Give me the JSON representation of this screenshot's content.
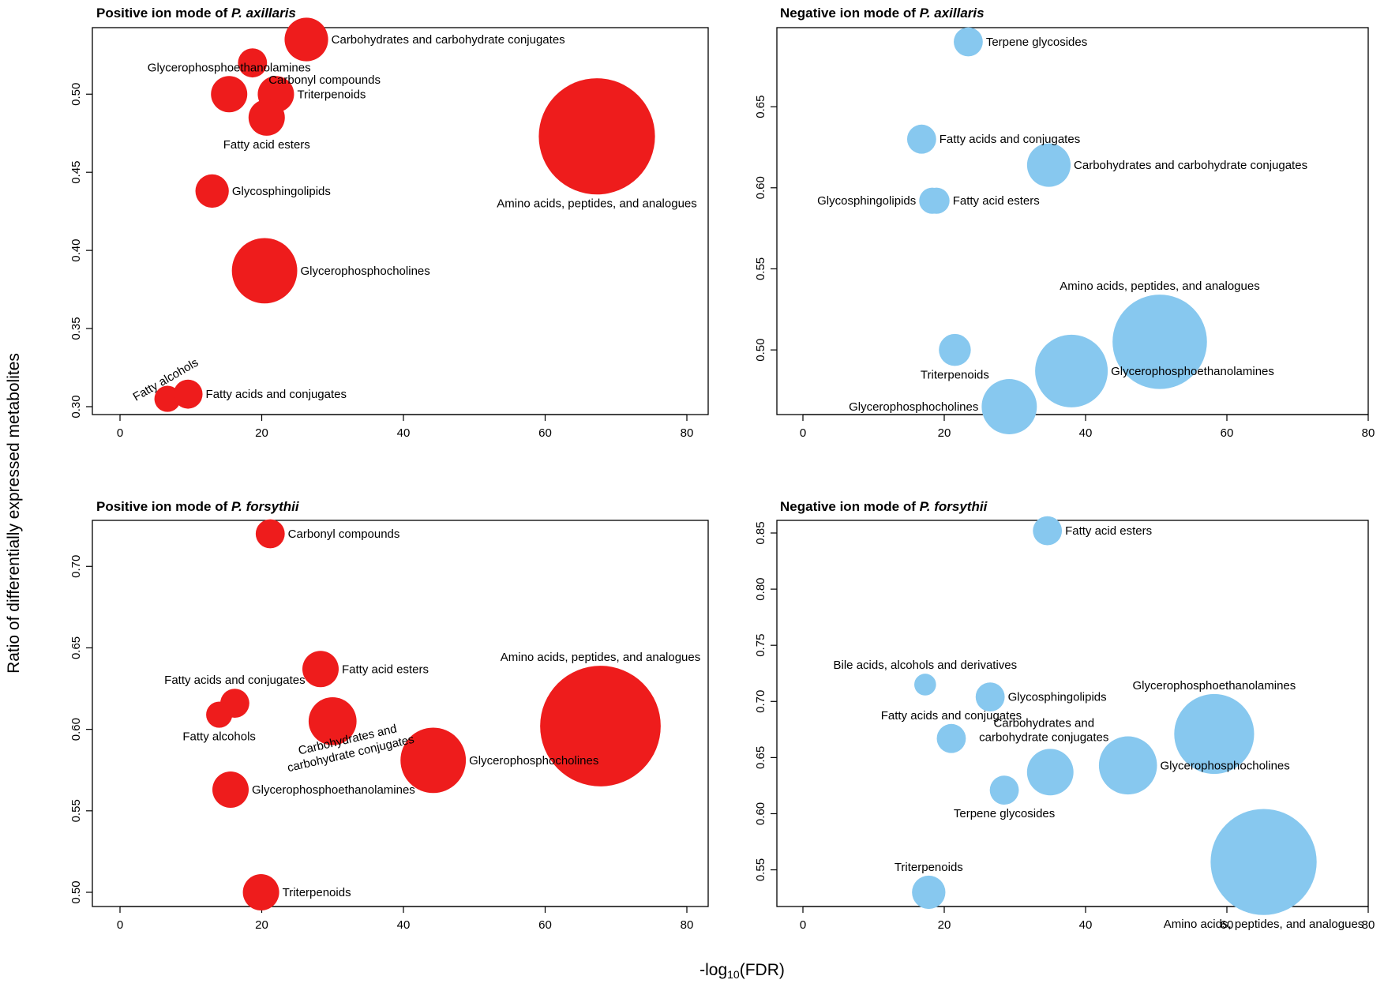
{
  "figure": {
    "xlabel_prefix": "-log",
    "xlabel_sub": "10",
    "xlabel_suffix": "(FDR)",
    "ylabel": "Ratio of differentially expressed metabolites",
    "colors": {
      "positive": "#ee1c1c",
      "negative": "#87c8ef"
    }
  },
  "chart_data": [
    {
      "type": "scatter",
      "title_prefix": "Positive ion mode of ",
      "title_species": "P. axillaris",
      "mode": "positive",
      "xlim": [
        0,
        80
      ],
      "ylim": [
        0.3,
        0.535
      ],
      "xticks": [
        "0",
        "20",
        "40",
        "60",
        "80"
      ],
      "yticks": [
        "0.30",
        "0.35",
        "0.40",
        "0.45",
        "0.50"
      ],
      "points": [
        {
          "label": "Carbohydrates and carbohydrate conjugates",
          "x": 26.3,
          "y": 0.535,
          "size": 3,
          "pos": "right"
        },
        {
          "label": "Carbonyl compounds",
          "x": 18.7,
          "y": 0.52,
          "size": 2,
          "pos": "below-right"
        },
        {
          "label": "Glycerophosphoethanolamines",
          "x": 15.4,
          "y": 0.5,
          "size": 2.5,
          "pos": "above"
        },
        {
          "label": "Triterpenoids",
          "x": 22.0,
          "y": 0.5,
          "size": 2.5,
          "pos": "right"
        },
        {
          "label": "Fatty acid esters",
          "x": 20.7,
          "y": 0.485,
          "size": 2.5,
          "pos": "below"
        },
        {
          "label": "Amino acids, peptides, and analogues",
          "x": 67.3,
          "y": 0.473,
          "size": 8,
          "pos": "below"
        },
        {
          "label": "Glycosphingolipids",
          "x": 13.0,
          "y": 0.438,
          "size": 2.3,
          "pos": "right"
        },
        {
          "label": "Glycerophosphocholines",
          "x": 20.4,
          "y": 0.387,
          "size": 4.5,
          "pos": "right"
        },
        {
          "label": "Fatty alcohols",
          "x": 6.7,
          "y": 0.305,
          "size": 1.8,
          "pos": "rotated"
        },
        {
          "label": "Fatty acids and conjugates",
          "x": 9.6,
          "y": 0.308,
          "size": 2,
          "pos": "right"
        }
      ]
    },
    {
      "type": "scatter",
      "title_prefix": "Negative ion mode of ",
      "title_species": "P. axillaris",
      "mode": "negative",
      "xlim": [
        0,
        80
      ],
      "ylim": [
        0.465,
        0.69
      ],
      "xticks": [
        "0",
        "20",
        "40",
        "60",
        "80"
      ],
      "yticks": [
        "0.50",
        "0.55",
        "0.60",
        "0.65"
      ],
      "points": [
        {
          "label": "Terpene glycosides",
          "x": 23.4,
          "y": 0.69,
          "size": 2,
          "pos": "right"
        },
        {
          "label": "Fatty acids and conjugates",
          "x": 16.8,
          "y": 0.63,
          "size": 2,
          "pos": "right"
        },
        {
          "label": "Carbohydrates and carbohydrate conjugates",
          "x": 34.8,
          "y": 0.614,
          "size": 3,
          "pos": "right"
        },
        {
          "label": "Glycosphingolipids",
          "x": 18.3,
          "y": 0.592,
          "size": 1.8,
          "pos": "left"
        },
        {
          "label": "Fatty acid esters",
          "x": 18.9,
          "y": 0.592,
          "size": 1.8,
          "pos": "right"
        },
        {
          "label": "Amino acids, peptides, and analogues",
          "x": 50.5,
          "y": 0.505,
          "size": 6.5,
          "pos": "above"
        },
        {
          "label": "Triterpenoids",
          "x": 21.5,
          "y": 0.5,
          "size": 2.2,
          "pos": "below"
        },
        {
          "label": "Glycerophosphoethanolamines",
          "x": 38.0,
          "y": 0.487,
          "size": 5,
          "pos": "right"
        },
        {
          "label": "Glycerophosphocholines",
          "x": 29.2,
          "y": 0.465,
          "size": 3.8,
          "pos": "left"
        }
      ]
    },
    {
      "type": "scatter",
      "title_prefix": "Positive ion mode of ",
      "title_species": "P. forsythii",
      "mode": "positive",
      "xlim": [
        0,
        80
      ],
      "ylim": [
        0.5,
        0.72
      ],
      "xticks": [
        "0",
        "20",
        "40",
        "60",
        "80"
      ],
      "yticks": [
        "0.50",
        "0.55",
        "0.60",
        "0.65",
        "0.70"
      ],
      "points": [
        {
          "label": "Carbonyl compounds",
          "x": 21.2,
          "y": 0.72,
          "size": 2,
          "pos": "right"
        },
        {
          "label": "Fatty acid esters",
          "x": 28.3,
          "y": 0.637,
          "size": 2.5,
          "pos": "right"
        },
        {
          "label": "Fatty acids and conjugates",
          "x": 16.2,
          "y": 0.616,
          "size": 2,
          "pos": "above"
        },
        {
          "label": "Fatty alcohols",
          "x": 14.0,
          "y": 0.609,
          "size": 1.8,
          "pos": "below"
        },
        {
          "label": "Amino acids, peptides, and analogues",
          "x": 67.8,
          "y": 0.602,
          "size": 8.3,
          "pos": "above"
        },
        {
          "label": "Carbohydrates and carbohydrate conjugates",
          "x": 30.0,
          "y": 0.605,
          "size": 3.3,
          "pos": "rotated2"
        },
        {
          "label": "Glycerophosphocholines",
          "x": 44.2,
          "y": 0.581,
          "size": 4.5,
          "pos": "right"
        },
        {
          "label": "Glycerophosphoethanolamines",
          "x": 15.6,
          "y": 0.563,
          "size": 2.5,
          "pos": "right"
        },
        {
          "label": "Triterpenoids",
          "x": 19.9,
          "y": 0.5,
          "size": 2.5,
          "pos": "right"
        }
      ]
    },
    {
      "type": "scatter",
      "title_prefix": "Negative ion mode of ",
      "title_species": "P. forsythii",
      "mode": "negative",
      "xlim": [
        0,
        80
      ],
      "ylim": [
        0.53,
        0.85
      ],
      "xticks": [
        "0",
        "20",
        "40",
        "60",
        "80"
      ],
      "yticks": [
        "0.55",
        "0.60",
        "0.65",
        "0.70",
        "0.75",
        "0.80",
        "0.85"
      ],
      "points": [
        {
          "label": "Fatty acid esters",
          "x": 34.6,
          "y": 0.852,
          "size": 2,
          "pos": "right"
        },
        {
          "label": "Bile acids, alcohols and derivatives",
          "x": 17.3,
          "y": 0.715,
          "size": 1.5,
          "pos": "above"
        },
        {
          "label": "Glycosphingolipids",
          "x": 26.5,
          "y": 0.704,
          "size": 2,
          "pos": "right"
        },
        {
          "label": "Glycerophosphoethanolamines",
          "x": 58.2,
          "y": 0.671,
          "size": 5.5,
          "pos": "above"
        },
        {
          "label": "Fatty acids and conjugates",
          "x": 21.0,
          "y": 0.667,
          "size": 2,
          "pos": "above"
        },
        {
          "label": "Carbohydrates and carbohydrate conjugates",
          "x": 35.0,
          "y": 0.637,
          "size": 3.2,
          "pos": "above2"
        },
        {
          "label": "Glycerophosphocholines",
          "x": 46.0,
          "y": 0.643,
          "size": 4,
          "pos": "right"
        },
        {
          "label": "Terpene glycosides",
          "x": 28.5,
          "y": 0.621,
          "size": 2,
          "pos": "below"
        },
        {
          "label": "Amino acids, peptides, and analogues",
          "x": 65.2,
          "y": 0.557,
          "size": 7.3,
          "pos": "below"
        },
        {
          "label": "Triterpenoids",
          "x": 17.8,
          "y": 0.53,
          "size": 2.3,
          "pos": "above"
        }
      ]
    }
  ]
}
